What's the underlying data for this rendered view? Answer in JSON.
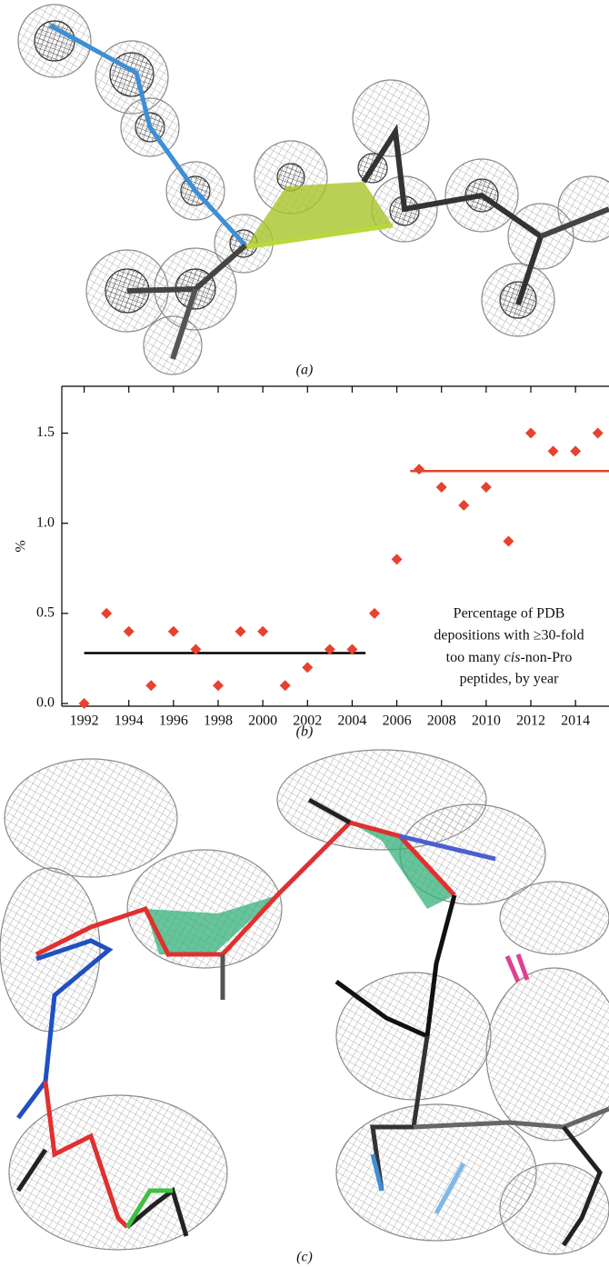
{
  "panels": {
    "a_label": "(a)",
    "b_label": "(b)",
    "c_label": "(c)"
  },
  "chart_data": {
    "type": "scatter",
    "ylabel": "%",
    "x": [
      1992,
      1993,
      1994,
      1995,
      1996,
      1997,
      1998,
      1999,
      2000,
      2001,
      2002,
      2003,
      2004,
      2005,
      2006,
      2007,
      2008,
      2009,
      2010,
      2011,
      2012,
      2013,
      2014,
      2015
    ],
    "values": [
      0.0,
      0.5,
      0.4,
      0.1,
      0.4,
      0.3,
      0.1,
      0.4,
      0.4,
      0.1,
      0.2,
      0.3,
      0.3,
      0.5,
      0.8,
      1.3,
      1.2,
      1.1,
      1.2,
      0.9,
      1.5,
      1.4,
      1.4,
      1.5
    ],
    "color": "#e8412c",
    "reference_lines": [
      {
        "value": 0.28,
        "x_range": [
          1992,
          2004.6
        ],
        "color": "#000000"
      },
      {
        "value": 1.29,
        "x_range": [
          2006.6,
          2015.6
        ],
        "color": "#e8412c"
      }
    ],
    "xlim": [
      1991,
      2015.5
    ],
    "xticks": [
      1992,
      1994,
      1996,
      1998,
      2000,
      2002,
      2004,
      2006,
      2008,
      2010,
      2012,
      2014
    ],
    "ylim": [
      -0.015,
      1.76
    ],
    "yticks": [
      {
        "value": 0,
        "label": "0.0"
      },
      0.5,
      {
        "value": 1,
        "label": "1.0"
      },
      1.5
    ],
    "annotation": {
      "line1": "Percentage of PDB",
      "line2": "depositions with ≥30-fold",
      "line3_pre": "too many ",
      "line3_italic": "cis",
      "line3_post": "-non-Pro",
      "line4": "peptides, by year"
    }
  }
}
